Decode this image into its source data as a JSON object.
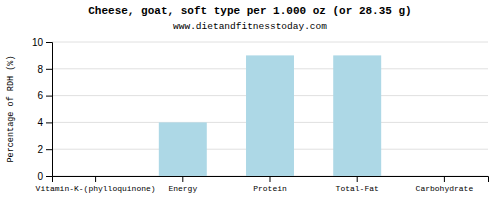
{
  "chart_data": {
    "type": "bar",
    "title": "Cheese, goat, soft type per 1.000 oz (or 28.35 g)",
    "subtitle": "www.dietandfitnesstoday.com",
    "ylabel": "Percentage of RDH (%)",
    "categories": [
      "Vitamin-K-(phylloquinone)",
      "Energy",
      "Protein",
      "Total-Fat",
      "Carbohydrate"
    ],
    "values": [
      0,
      4,
      9,
      9,
      0
    ],
    "color": "#add8e6",
    "ylim": [
      0,
      10
    ],
    "yticks": [
      0,
      2,
      4,
      6,
      8,
      10
    ],
    "grid": true
  }
}
